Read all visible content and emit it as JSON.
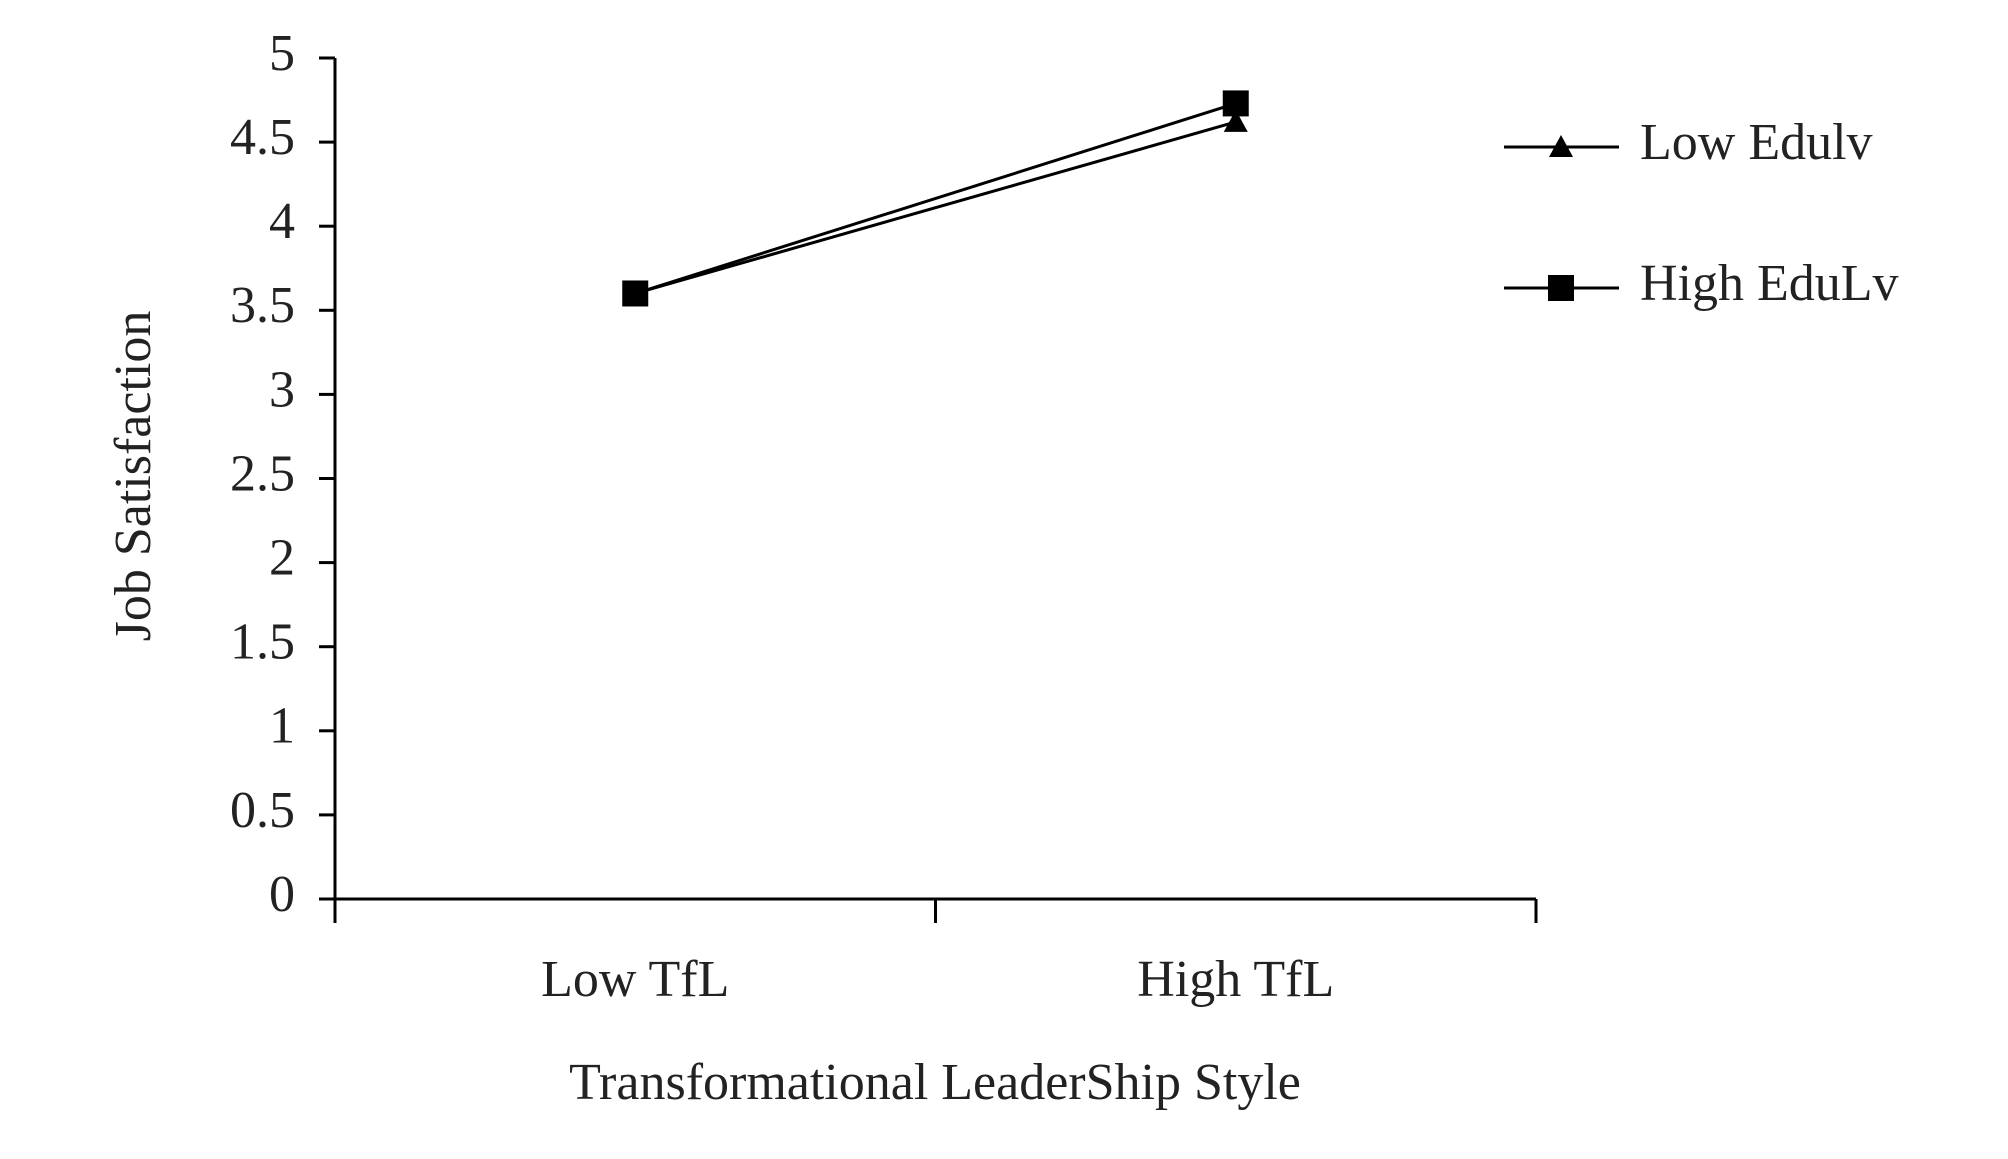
{
  "chart_data": {
    "type": "line",
    "categories": [
      "Low TfL",
      "High TfL"
    ],
    "series": [
      {
        "name": "Low Edulv",
        "color": "#000000",
        "marker": "triangle",
        "values": [
          3.6,
          4.62
        ]
      },
      {
        "name": "High EduLv",
        "color": "#000000",
        "marker": "square",
        "values": [
          3.6,
          4.73
        ]
      }
    ],
    "x_label": "Transformational LeaderShip Style",
    "y_label": "Job Satisfaction",
    "ylim": [
      0,
      5
    ],
    "yticks": [
      0,
      0.5,
      1,
      1.5,
      2,
      2.5,
      3,
      3.5,
      4,
      4.5,
      5
    ],
    "grid": false,
    "legend": "right"
  }
}
